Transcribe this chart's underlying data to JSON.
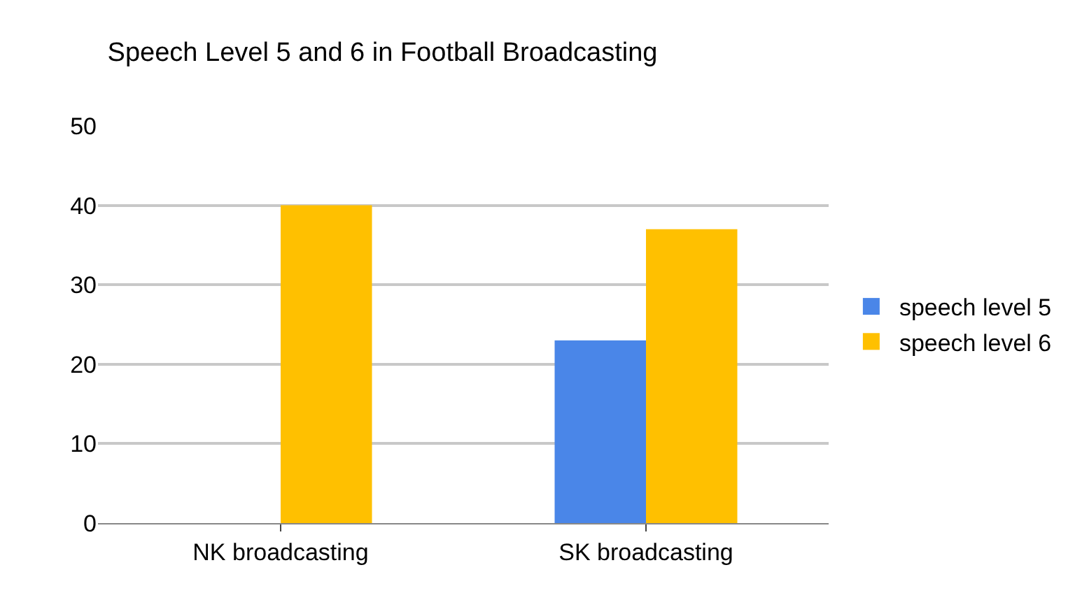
{
  "chart_data": {
    "type": "bar",
    "title": "Speech Level 5 and 6 in Football Broadcasting",
    "categories": [
      "NK broadcasting",
      "SK broadcasting"
    ],
    "series": [
      {
        "name": "speech level 5",
        "color": "#4a86e8",
        "values": [
          0,
          23
        ]
      },
      {
        "name": "speech level 6",
        "color": "#ffc000",
        "values": [
          40,
          37
        ]
      }
    ],
    "ylim": [
      0,
      50
    ],
    "yticks": [
      0,
      10,
      20,
      30,
      40,
      50
    ],
    "grid": "y",
    "legend": "right"
  }
}
